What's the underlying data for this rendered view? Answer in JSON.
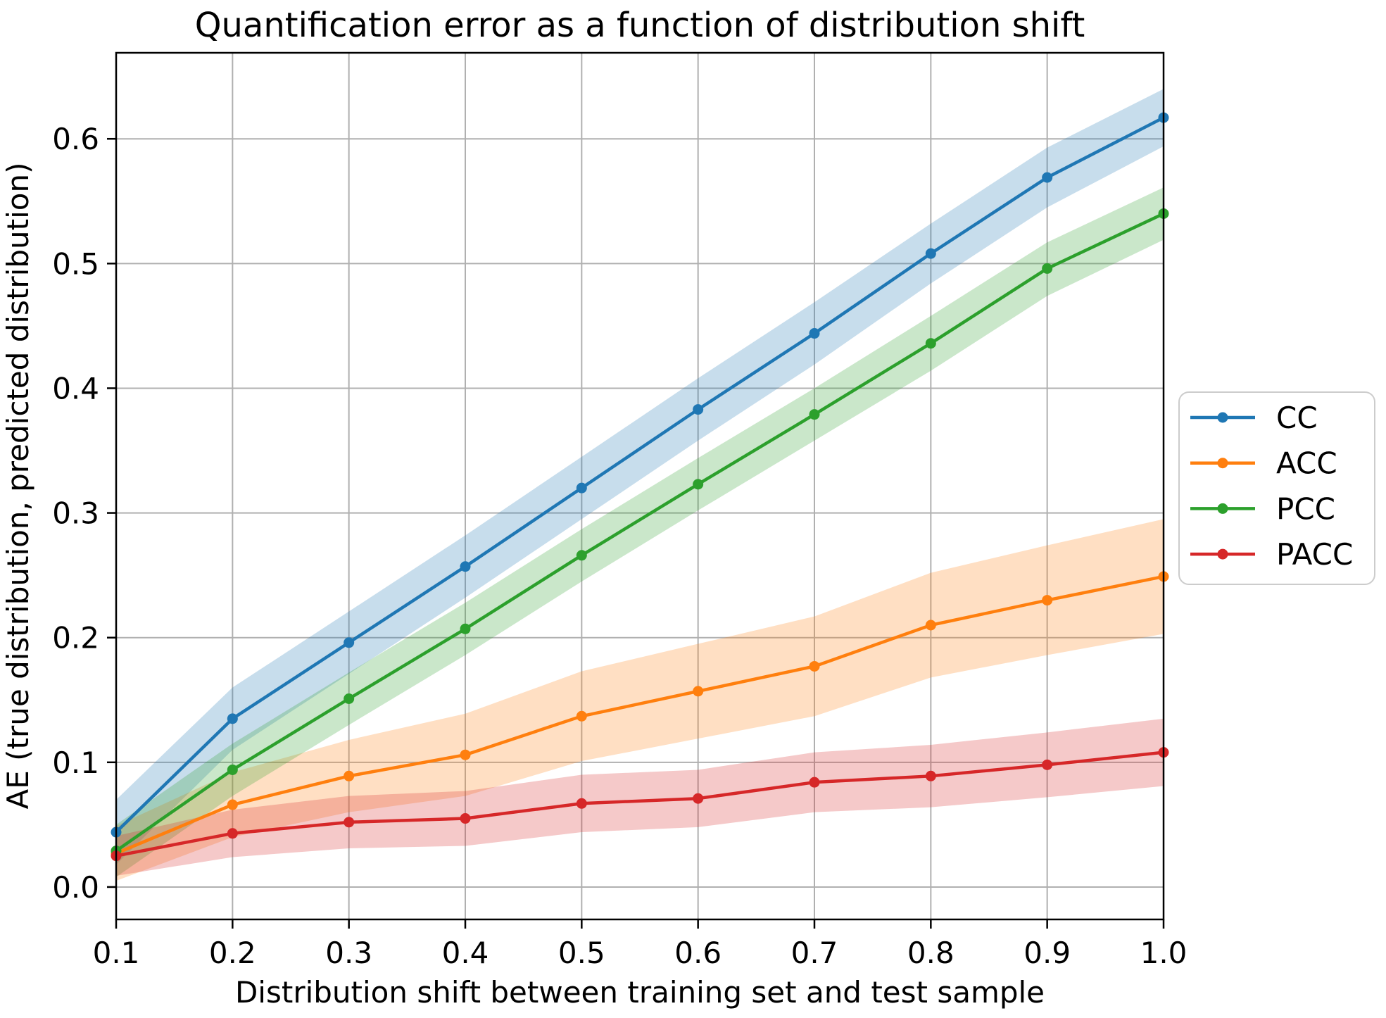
{
  "chart_data": {
    "type": "line",
    "title": "Quantification error as a function of distribution shift",
    "xlabel": "Distribution shift between training set and test sample",
    "ylabel": "AE (true distribution, predicted distribution)",
    "xlim": [
      0.1,
      1.0
    ],
    "ylim": [
      -0.026,
      0.669
    ],
    "grid": true,
    "grid_color": "#b0b0b0",
    "spine_color": "#000000",
    "legend_position": "outside-right",
    "band_opacity": 0.25,
    "x": [
      0.1,
      0.2,
      0.3,
      0.4,
      0.5,
      0.6,
      0.7,
      0.8,
      0.9,
      1.0
    ],
    "xticks": {
      "values": [
        0.1,
        0.2,
        0.3,
        0.4,
        0.5,
        0.6,
        0.7,
        0.8,
        0.9,
        1.0
      ],
      "labels": [
        "0.1",
        "0.2",
        "0.3",
        "0.4",
        "0.5",
        "0.6",
        "0.7",
        "0.8",
        "0.9",
        "1.0"
      ]
    },
    "yticks": {
      "values": [
        0.0,
        0.1,
        0.2,
        0.3,
        0.4,
        0.5,
        0.6
      ],
      "labels": [
        "0.0",
        "0.1",
        "0.2",
        "0.3",
        "0.4",
        "0.5",
        "0.6"
      ]
    },
    "series": [
      {
        "name": "CC",
        "color": "#1f77b4",
        "values": [
          0.044,
          0.135,
          0.196,
          0.257,
          0.32,
          0.383,
          0.444,
          0.508,
          0.569,
          0.617
        ],
        "band_lower": [
          0.018,
          0.11,
          0.171,
          0.232,
          0.295,
          0.358,
          0.419,
          0.484,
          0.545,
          0.594
        ],
        "band_upper": [
          0.07,
          0.16,
          0.221,
          0.282,
          0.345,
          0.408,
          0.469,
          0.532,
          0.593,
          0.64
        ]
      },
      {
        "name": "ACC",
        "color": "#ff7f0e",
        "values": [
          0.027,
          0.066,
          0.089,
          0.106,
          0.137,
          0.157,
          0.177,
          0.21,
          0.23,
          0.249
        ],
        "band_lower": [
          0.005,
          0.04,
          0.06,
          0.073,
          0.101,
          0.119,
          0.137,
          0.168,
          0.186,
          0.203
        ],
        "band_upper": [
          0.049,
          0.092,
          0.118,
          0.139,
          0.173,
          0.195,
          0.217,
          0.252,
          0.274,
          0.295
        ]
      },
      {
        "name": "PCC",
        "color": "#2ca02c",
        "values": [
          0.029,
          0.094,
          0.151,
          0.207,
          0.266,
          0.323,
          0.379,
          0.436,
          0.496,
          0.54
        ],
        "band_lower": [
          0.008,
          0.073,
          0.13,
          0.186,
          0.245,
          0.302,
          0.358,
          0.414,
          0.474,
          0.519
        ],
        "band_upper": [
          0.05,
          0.115,
          0.172,
          0.228,
          0.287,
          0.344,
          0.4,
          0.458,
          0.517,
          0.561
        ]
      },
      {
        "name": "PACC",
        "color": "#d62728",
        "values": [
          0.025,
          0.043,
          0.052,
          0.055,
          0.067,
          0.071,
          0.084,
          0.089,
          0.098,
          0.108
        ],
        "band_lower": [
          0.009,
          0.024,
          0.031,
          0.033,
          0.044,
          0.048,
          0.06,
          0.064,
          0.072,
          0.081
        ],
        "band_upper": [
          0.041,
          0.062,
          0.073,
          0.077,
          0.09,
          0.094,
          0.108,
          0.114,
          0.124,
          0.135
        ]
      }
    ]
  }
}
